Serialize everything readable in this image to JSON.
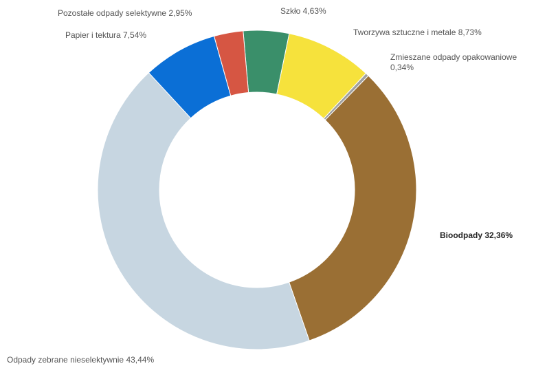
{
  "chart_data": {
    "type": "pie",
    "donut": true,
    "legend": "none",
    "slices": [
      {
        "label": "Szkło",
        "value": 4.63,
        "display": "Szkło 4,63%",
        "color": "#3a8f6a"
      },
      {
        "label": "Tworzywa sztuczne i metale",
        "value": 8.73,
        "display": "Tworzywa sztuczne i metale 8,73%",
        "color": "#f6e23c"
      },
      {
        "label": "Zmieszane odpady opakowaniowe",
        "value": 0.34,
        "display": "Zmieszane odpady opakowaniowe 0,34%",
        "color": "#a0a0a0"
      },
      {
        "label": "Bioodpady",
        "value": 32.36,
        "display": "Bioodpady 32,36%",
        "color": "#9a6f34"
      },
      {
        "label": "Odpady zebrane nieselektywnie",
        "value": 43.44,
        "display": "Odpady zebrane nieselektywnie 43,44%",
        "color": "#c7d6e1"
      },
      {
        "label": "Papier i tektura",
        "value": 7.54,
        "display": "Papier i tektura 7,54%",
        "color": "#0b6fd6"
      },
      {
        "label": "Pozostałe odpady selektywne",
        "value": 2.95,
        "display": "Pozostałe odpady selektywne 2,95%",
        "color": "#d65643"
      }
    ]
  }
}
